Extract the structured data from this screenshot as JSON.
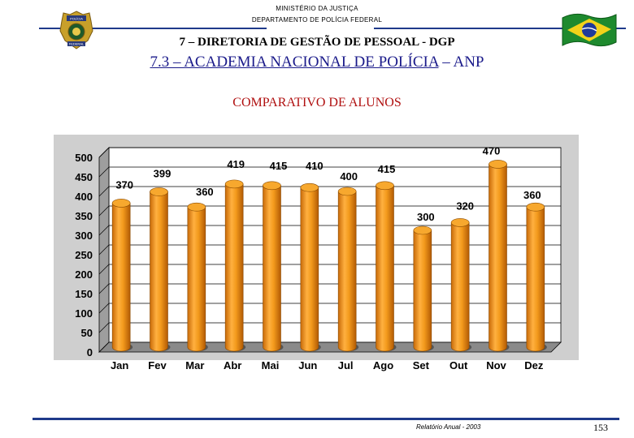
{
  "header": {
    "ministry": "MINISTÉRIO DA JUSTIÇA",
    "department": "DEPARTAMENTO DE POLÍCIA FEDERAL",
    "title_line1": "7 – DIRETORIA DE GESTÃO DE PESSOAL - DGP",
    "title_line2_underlined": "7.3 – ACADEMIA NACIONAL DE POLÍCIA",
    "title_line2_rest": " – ANP",
    "badge_text_top": "POLÍCIA",
    "badge_text_bottom": "FEDERAL"
  },
  "colors": {
    "header_line": "#1f3a8a",
    "title2": "#1a1a8a",
    "chart_title": "#b01010",
    "bar": "#f39a1c",
    "bar_dark": "#c86a08",
    "bar_light": "#ffc56a",
    "plot_bg": "#ffffff",
    "floor": "#9a9a9a"
  },
  "chart_data": {
    "type": "bar",
    "title": "COMPARATIVO DE ALUNOS",
    "xlabel": "",
    "ylabel": "",
    "categories": [
      "Jan",
      "Fev",
      "Mar",
      "Abr",
      "Mai",
      "Jun",
      "Jul",
      "Ago",
      "Set",
      "Out",
      "Nov",
      "Dez"
    ],
    "values": [
      370,
      399,
      360,
      419,
      415,
      410,
      400,
      415,
      300,
      320,
      470,
      360
    ],
    "data_labels": [
      "370",
      "399",
      "360",
      "419",
      "415",
      "410",
      "400",
      "415",
      "300",
      "320",
      "470",
      "360"
    ],
    "ylim": [
      0,
      500
    ],
    "yticks": [
      "0",
      "50",
      "100",
      "150",
      "200",
      "250",
      "300",
      "350",
      "400",
      "450",
      "500"
    ],
    "grid": true,
    "legend": "none",
    "style": "3d-cylinder"
  },
  "footer": {
    "report": "Relatório Anual - 2003",
    "page": "153"
  }
}
